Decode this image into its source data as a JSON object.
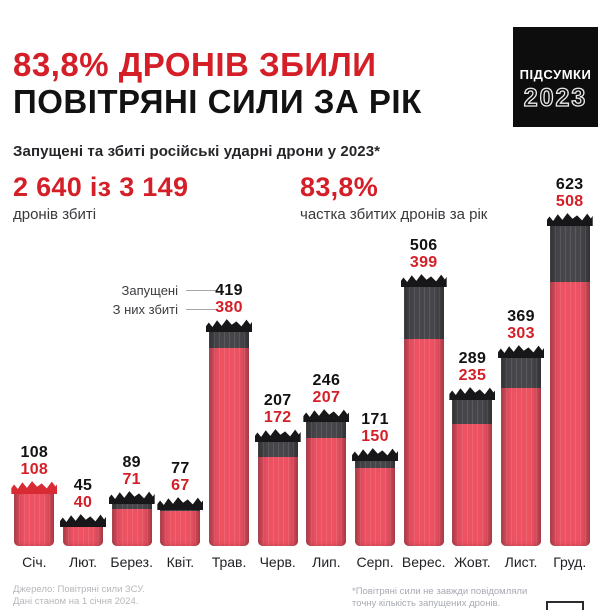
{
  "header": {
    "title_line1": "83,8% ДРОНІВ ЗБИЛИ",
    "title_line2": "ПОВІТРЯНІ СИЛИ ЗА РІК"
  },
  "badge": {
    "line1": "ПІДСУМКИ",
    "line2": "2023"
  },
  "subtitle": "Запущені та збиті російські ударні дрони у 2023*",
  "stats": {
    "downed_total": {
      "value": "2 640 із 3 149",
      "label": "дронів збиті"
    },
    "share": {
      "value": "83,8%",
      "label": "частка збитих дронів за рік"
    }
  },
  "legend": {
    "launched": "Запущені",
    "downed": "З них збиті"
  },
  "chart_data": {
    "type": "bar",
    "title": "Запущені та збиті російські ударні дрони у 2023*",
    "categories": [
      "Січ.",
      "Лют.",
      "Берез.",
      "Квіт.",
      "Трав.",
      "Черв.",
      "Лип.",
      "Серп.",
      "Верес.",
      "Жовт.",
      "Лист.",
      "Груд."
    ],
    "series": [
      {
        "name": "Запущені",
        "color": "#47474b",
        "values": [
          108,
          45,
          89,
          77,
          419,
          207,
          246,
          171,
          506,
          289,
          369,
          623
        ]
      },
      {
        "name": "З них збиті",
        "color": "#ed5263",
        "values": [
          108,
          40,
          71,
          67,
          380,
          172,
          207,
          150,
          399,
          235,
          303,
          508
        ]
      }
    ],
    "xlabel": "",
    "ylabel": "",
    "ylim": [
      0,
      650
    ],
    "grid": false,
    "value_labels": true,
    "legend_position": "inline-left-of-may-labels",
    "bar_style": "stacked-overlay, hand-drawn marker top edge"
  },
  "footer": {
    "source_line1": "Джерело: Повітряні сили ЗСУ.",
    "source_line2": "Дані станом на 1 січня 2024.",
    "note_line1": "*Повітряні сили не завжди повідомляли",
    "note_line2": "точну кількість запущених дронів."
  },
  "colors": {
    "accent_red": "#d41f28",
    "bar_red": "#ed5263",
    "bar_gray": "#47474b",
    "scribble_black": "#17171a",
    "badge_bg": "#0d0d0d"
  }
}
